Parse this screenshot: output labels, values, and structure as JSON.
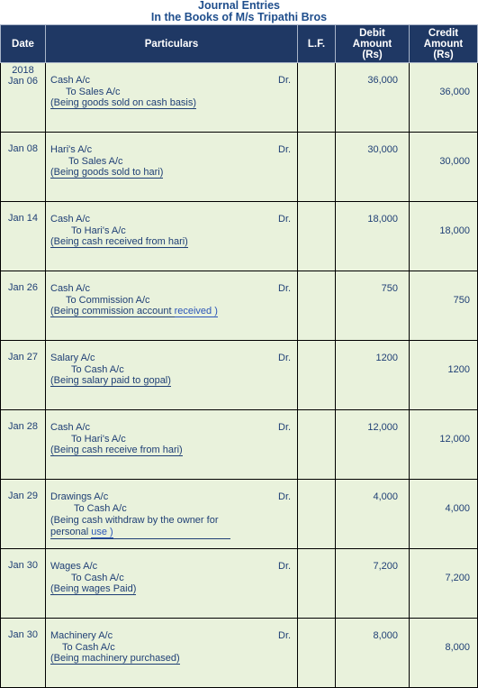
{
  "title": "Journal Entries",
  "subtitle": "In the Books of M/s Tripathi Bros",
  "headers": {
    "date": "Date",
    "particulars": "Particulars",
    "lf": "L.F.",
    "debit": [
      "Debit",
      "Amount",
      "(Rs)"
    ],
    "credit": [
      "Credit",
      "Amount",
      "(Rs)"
    ]
  },
  "dr_label": "Dr.",
  "year": "2018",
  "entries": [
    {
      "date": "Jan 06",
      "debit_account": "Cash A/c",
      "credit_account": "To Sales A/c",
      "narration": "(Being goods sold on cash basis)",
      "debit": "36,000",
      "credit": "36,000"
    },
    {
      "date": "Jan 08",
      "debit_account": "Hari's A/c",
      "credit_account": "To Sales A/c",
      "narration": "(Being goods sold to hari)",
      "debit": "30,000",
      "credit": "30,000"
    },
    {
      "date": "Jan 14",
      "debit_account": "Cash A/c",
      "credit_account": "To Hari's A/c",
      "narration": "(Being cash received from hari)",
      "debit": "18,000",
      "credit": "18,000"
    },
    {
      "date": "Jan 26",
      "debit_account": "Cash A/c",
      "credit_account": "To Commission A/c",
      "narration_pre": "(Being commission account ",
      "narration_link": "received )",
      "debit": "750",
      "credit": "750"
    },
    {
      "date": "Jan 27",
      "debit_account": "Salary A/c",
      "credit_account": "To Cash A/c",
      "narration": "(Being salary paid to gopal)",
      "debit": "1200",
      "credit": "1200"
    },
    {
      "date": "Jan 28",
      "debit_account": "Cash A/c",
      "credit_account": "To Hari's A/c",
      "narration": "(Being cash receive from hari)",
      "debit": "12,000",
      "credit": "12,000"
    },
    {
      "date": "Jan 29",
      "debit_account": "Drawings A/c",
      "credit_account": "To Cash A/c",
      "narration_pre": "(Being cash withdraw by the owner for personal ",
      "narration_link": "use )",
      "debit": "4,000",
      "credit": "4,000"
    },
    {
      "date": "Jan 30",
      "debit_account": "Wages A/c",
      "credit_account": "To Cash A/c",
      "narration": "(Being wages Paid)",
      "debit": "7,200",
      "credit": "7,200"
    },
    {
      "date": "Jan 30",
      "debit_account": "Machinery A/c",
      "credit_account": "To Cash A/c",
      "narration": "(Being machinery purchased)",
      "debit": "8,000",
      "credit": "8,000"
    }
  ]
}
